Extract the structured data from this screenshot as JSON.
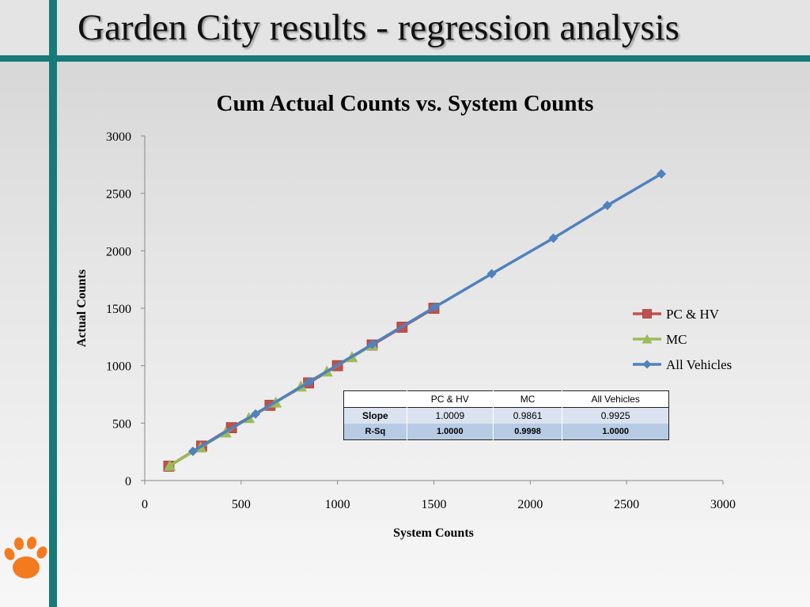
{
  "slide": {
    "title": "Garden City results - regression analysis",
    "accent_color": "#167a78",
    "logo": "tiger-paw-logo"
  },
  "chart_data": {
    "type": "line",
    "title": "Cum Actual Counts vs. System Counts",
    "xlabel": "System Counts",
    "ylabel": "Actual Counts",
    "xlim": [
      0,
      3000
    ],
    "ylim": [
      0,
      3000
    ],
    "xticks": [
      "0",
      "500",
      "1000",
      "1500",
      "2000",
      "2500",
      "3000"
    ],
    "yticks": [
      "0",
      "500",
      "1000",
      "1500",
      "2000",
      "2500",
      "3000"
    ],
    "grid": false,
    "legend_position": "right",
    "series": [
      {
        "name": "PC & HV",
        "color": "#c0504d",
        "marker": "square",
        "points": [
          [
            125,
            125
          ],
          [
            295,
            300
          ],
          [
            450,
            460
          ],
          [
            650,
            655
          ],
          [
            850,
            850
          ],
          [
            1000,
            1000
          ],
          [
            1180,
            1180
          ],
          [
            1335,
            1335
          ],
          [
            1500,
            1500
          ]
        ]
      },
      {
        "name": "MC",
        "color": "#9bbb59",
        "marker": "triangle",
        "points": [
          [
            130,
            130
          ],
          [
            290,
            290
          ],
          [
            420,
            420
          ],
          [
            540,
            545
          ],
          [
            680,
            680
          ],
          [
            810,
            820
          ],
          [
            945,
            950
          ],
          [
            1075,
            1075
          ],
          [
            1180,
            1180
          ]
        ]
      },
      {
        "name": "All Vehicles",
        "color": "#4f81bd",
        "marker": "diamond",
        "points": [
          [
            250,
            255
          ],
          [
            575,
            580
          ],
          [
            855,
            860
          ],
          [
            1180,
            1185
          ],
          [
            1505,
            1510
          ],
          [
            1800,
            1800
          ],
          [
            2120,
            2110
          ],
          [
            2400,
            2395
          ],
          [
            2680,
            2670
          ]
        ]
      }
    ],
    "stats_table": {
      "headers": [
        "",
        "PC & HV",
        "MC",
        "All Vehicles"
      ],
      "rows": [
        {
          "label": "Slope",
          "values": [
            "1.0009",
            "0.9861",
            "0.9925"
          ]
        },
        {
          "label": "R-Sq",
          "values": [
            "1.0000",
            "0.9998",
            "1.0000"
          ]
        }
      ]
    }
  }
}
